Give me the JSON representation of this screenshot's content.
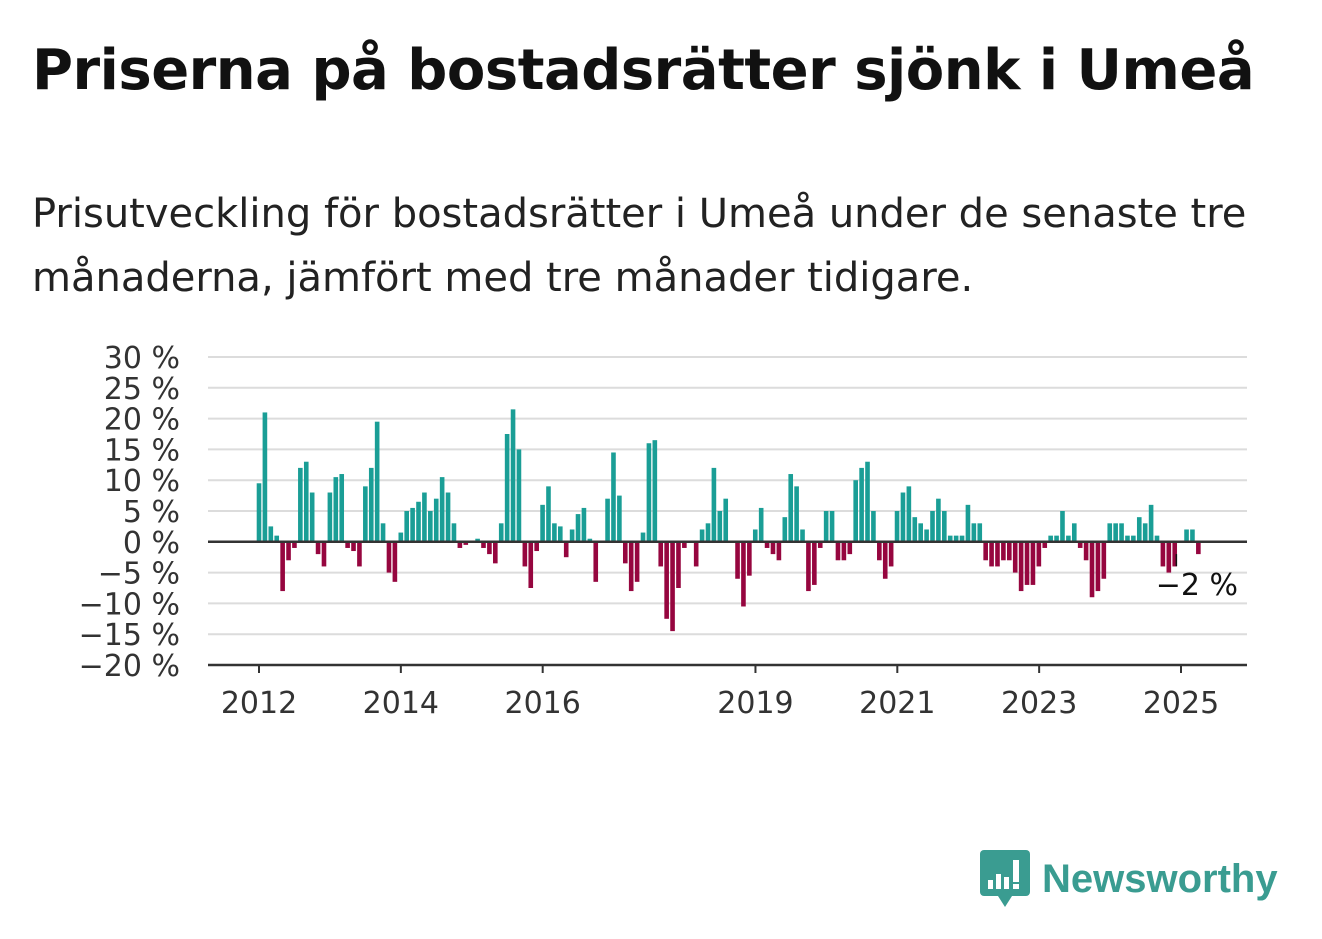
{
  "title": "Priserna på bostadsrätter sjönk i Umeå",
  "subtitle": "Prisutveckling för bostadsrätter i Umeå under de senaste tre månaderna, jämfört med tre månader tidigare.",
  "brand": {
    "name": "Newsworthy",
    "icon": "newsworthy-logo-icon",
    "color": "#3a9c91"
  },
  "chart_data": {
    "type": "bar",
    "ylim": [
      -20,
      30
    ],
    "ytick_values": [
      30,
      25,
      20,
      15,
      10,
      5,
      0,
      -5,
      -10,
      -15,
      -20
    ],
    "ytick_labels": [
      "30 %",
      "25 %",
      "20 %",
      "15 %",
      "10 %",
      "5 %",
      "0 %",
      "−5 %",
      "−10 %",
      "−15 %",
      "−20 %"
    ],
    "xticks": [
      {
        "label": "2012",
        "value": 2012.0
      },
      {
        "label": "2014",
        "value": 2014.0
      },
      {
        "label": "2016",
        "value": 2016.0
      },
      {
        "label": "2019",
        "value": 2019.0
      },
      {
        "label": "2021",
        "value": 2021.0
      },
      {
        "label": "2023",
        "value": 2023.0
      },
      {
        "label": "2025",
        "value": 2025.0
      }
    ],
    "x_start": 2012.0,
    "x_step": 0.0833,
    "positive_color": "#1a9e96",
    "negative_color": "#96063f",
    "grid": true,
    "annotation": {
      "label": "−2 %",
      "value": -2
    },
    "values": [
      9.5,
      21,
      2.5,
      1,
      -8,
      -3,
      -1,
      12,
      13,
      8,
      -2,
      -4,
      8,
      10.5,
      11,
      -1,
      -1.5,
      -4,
      9,
      12,
      19.5,
      3,
      -5,
      -6.5,
      1.5,
      5,
      5.5,
      6.5,
      8,
      5,
      7,
      10.5,
      8,
      3,
      -1,
      -0.5,
      0,
      0.5,
      -1,
      -2,
      -3.5,
      3,
      17.5,
      21.5,
      15,
      -4,
      -7.5,
      -1.5,
      6,
      9,
      3,
      2.5,
      -2.5,
      2,
      4.5,
      5.5,
      0.5,
      -6.5,
      0,
      7,
      14.5,
      7.5,
      -3.5,
      -8,
      -6.5,
      1.5,
      16,
      16.5,
      -4,
      -12.5,
      -14.5,
      -7.5,
      -1,
      0,
      -4,
      2,
      3,
      12,
      5,
      7,
      0,
      -6,
      -10.5,
      -5.5,
      2,
      5.5,
      -1,
      -2,
      -3,
      4,
      11,
      9,
      2,
      -8,
      -7,
      -1,
      5,
      5,
      -3,
      -3,
      -2,
      10,
      12,
      13,
      5,
      -3,
      -6,
      -4,
      5,
      8,
      9,
      4,
      3,
      2,
      5,
      7,
      5,
      1,
      1,
      1,
      6,
      3,
      3,
      -3,
      -4,
      -4,
      -3,
      -3,
      -5,
      -8,
      -7,
      -7,
      -4,
      -1,
      1,
      1,
      5,
      1,
      3,
      -1,
      -3,
      -9,
      -8,
      -6,
      3,
      3,
      3,
      1,
      1,
      4,
      3,
      6,
      1,
      -4,
      -5,
      -4,
      0,
      2,
      2,
      -2
    ]
  }
}
